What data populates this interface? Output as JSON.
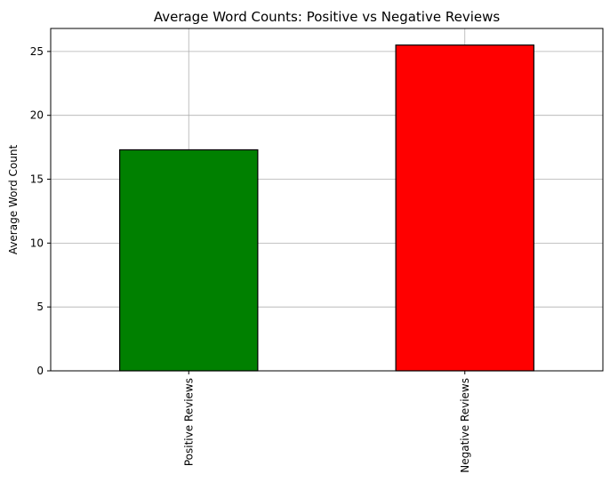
{
  "chart_data": {
    "type": "bar",
    "title": "Average Word Counts: Positive vs Negative Reviews",
    "xlabel": "",
    "ylabel": "Average Word Count",
    "categories": [
      "Positive Reviews",
      "Negative Reviews"
    ],
    "values": [
      17.3,
      25.5
    ],
    "bar_colors": [
      "#008000",
      "#ff0000"
    ],
    "bar_edge_color": "#000000",
    "ylim": [
      0,
      26.8
    ],
    "yticks": [
      0,
      5,
      10,
      15,
      20,
      25
    ],
    "grid": true,
    "grid_color": "#b0b0b0"
  }
}
